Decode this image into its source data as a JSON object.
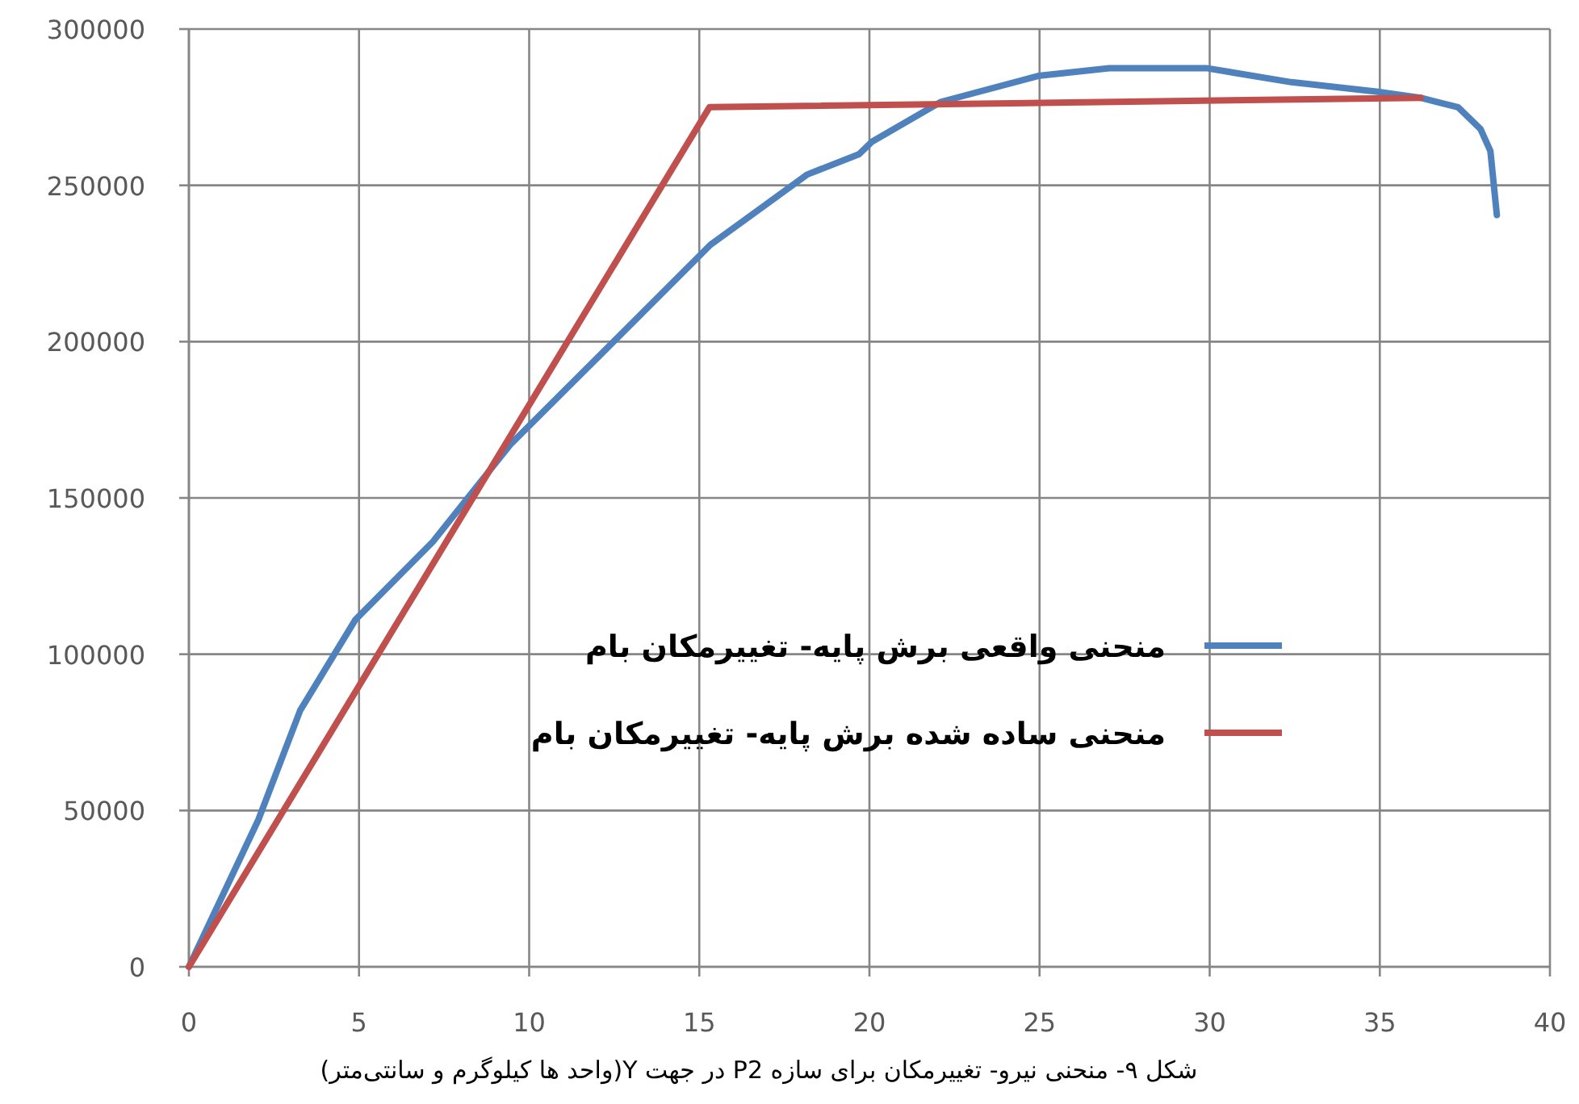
{
  "chart_data": {
    "type": "line",
    "xlim": [
      0,
      40
    ],
    "xticks": [
      0,
      5,
      10,
      15,
      20,
      25,
      30,
      35,
      40
    ],
    "ylim": [
      0,
      300000
    ],
    "yticks": [
      0,
      50000,
      100000,
      150000,
      200000,
      250000,
      300000
    ],
    "grid": true,
    "legend": "right",
    "marker": "none",
    "line_style": "solid",
    "series": [
      {
        "name": "منحنی واقعی برش پایه- تغییرمکان بام",
        "color": "#4f81bd",
        "x": [
          0,
          2.04,
          3.27,
          4.89,
          7.17,
          9.44,
          12.48,
          15.33,
          18.18,
          19.7,
          20.08,
          22.1,
          24.96,
          27.05,
          29.9,
          32.4,
          34.9,
          36.2,
          37.3,
          37.96,
          38.25,
          38.44
        ],
        "values": [
          0,
          47000,
          82000,
          111000,
          136000,
          167000,
          200000,
          231000,
          253500,
          260000,
          264000,
          276700,
          285000,
          287500,
          287500,
          283000,
          280000,
          278000,
          275000,
          268000,
          261000,
          240500
        ]
      },
      {
        "name": "منحنی ساده شده برش پایه- تغییرمکان بام",
        "color": "#c0504d",
        "x": [
          0,
          15.3,
          36.2
        ],
        "values": [
          0,
          275000,
          278000
        ]
      }
    ],
    "annotations": [
      "شکل ۹- منحنی نیرو- تغییرمکان برای سازه P2 در جهت Y(واحد ها کیلوگرم و سانتی‌متر)"
    ]
  }
}
